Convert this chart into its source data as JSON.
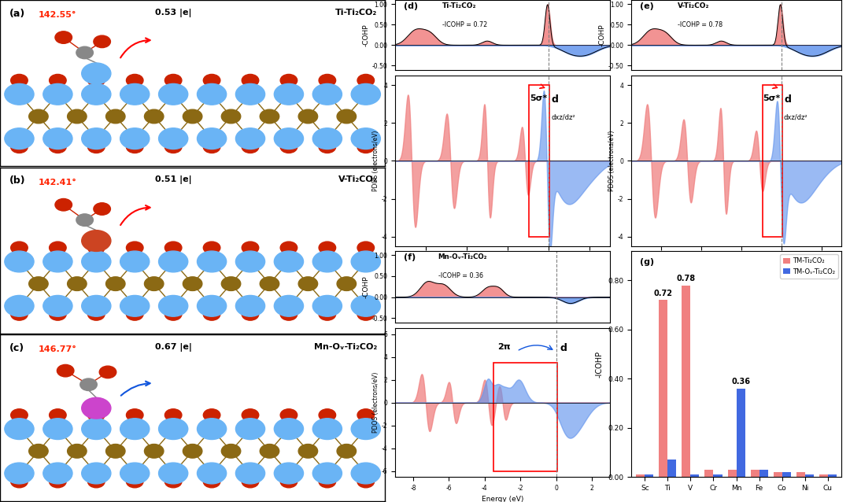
{
  "fig_width": 10.8,
  "fig_height": 6.38,
  "background": "#ffffff",
  "panel_g": {
    "categories": [
      "Sc",
      "Ti",
      "V",
      "Cr",
      "Mn",
      "Fe",
      "Co",
      "Ni",
      "Cu"
    ],
    "tm_ti2co2": [
      0.01,
      0.72,
      0.78,
      0.03,
      0.03,
      0.03,
      0.02,
      0.02,
      0.01
    ],
    "tm_ov_ti2co2": [
      0.01,
      0.07,
      0.01,
      0.01,
      0.36,
      0.03,
      0.02,
      0.01,
      0.01
    ],
    "color_pink": "#f08080",
    "color_blue": "#4169e1",
    "ylim": [
      0,
      0.9
    ],
    "yticks": [
      0.0,
      0.2,
      0.4,
      0.6,
      0.8
    ],
    "ylabel": "-ICOHP",
    "legend1": "TM-Ti₂CO₂",
    "legend2": "TM-Oᵥ-Ti₂CO₂"
  },
  "cohp_color_pos": "#f08080",
  "cohp_color_neg": "#6495ed",
  "pdos_color_co": "#f08080",
  "pdos_color_d": "#6495ed"
}
